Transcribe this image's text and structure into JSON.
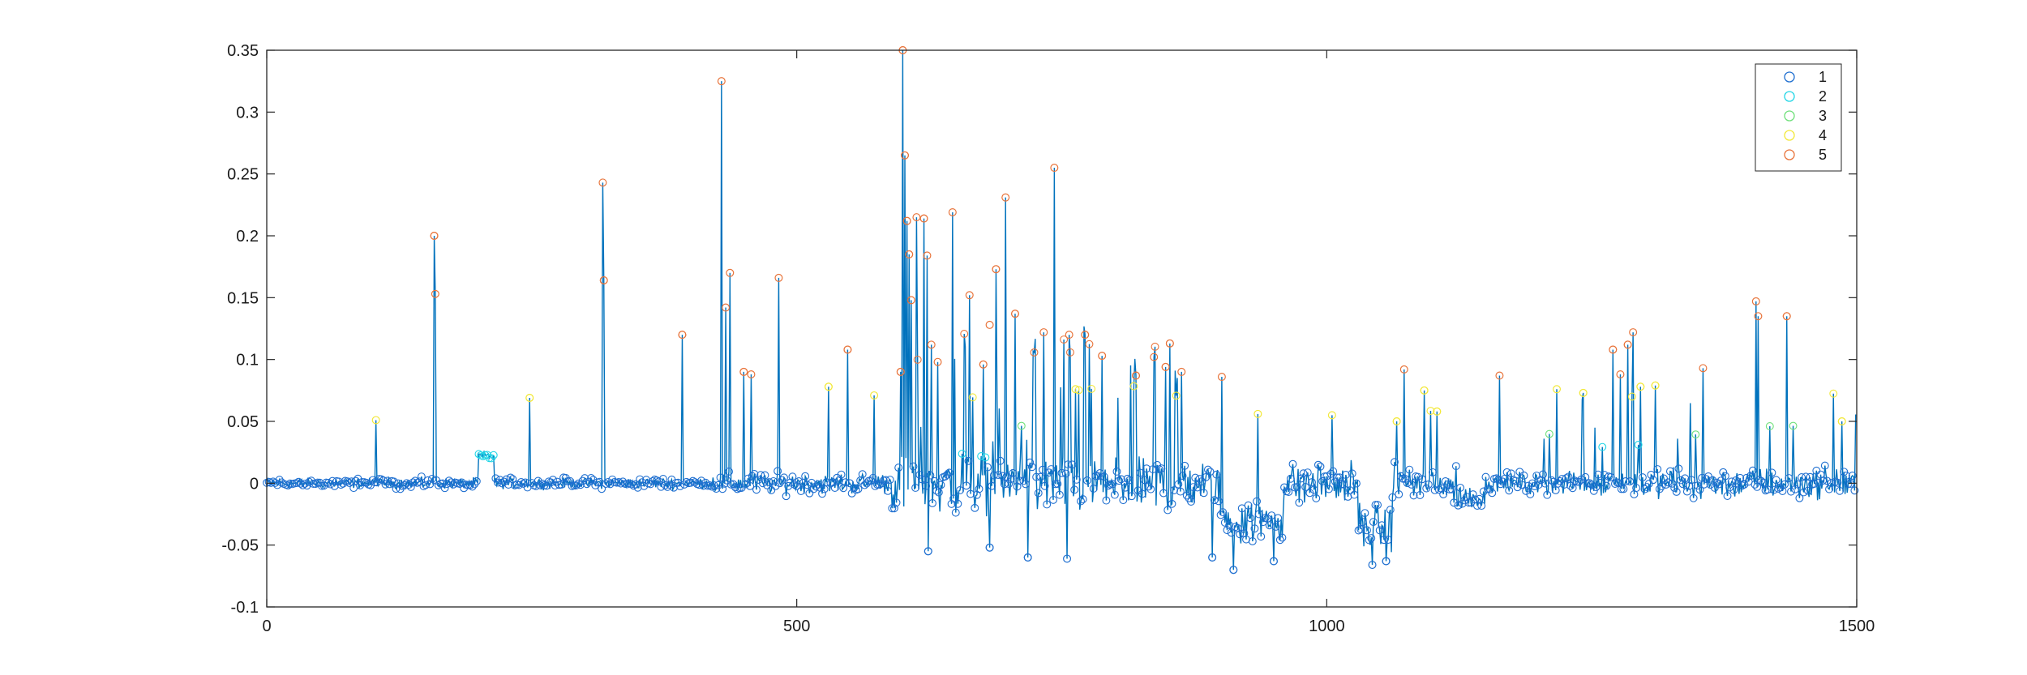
{
  "chart_data": {
    "type": "scatter",
    "title": "",
    "xlabel": "",
    "ylabel": "",
    "xlim": [
      0,
      1500
    ],
    "ylim": [
      -0.1,
      0.35
    ],
    "grid": false,
    "legend_placement": "top-right",
    "x_ticks": [
      0,
      500,
      1000,
      1500
    ],
    "x_tick_labels": [
      "0",
      "500",
      "1000",
      "1500"
    ],
    "y_ticks": [
      -0.1,
      -0.05,
      0,
      0.05,
      0.1,
      0.15,
      0.2,
      0.25,
      0.3,
      0.35
    ],
    "y_tick_labels": [
      "-0.1",
      "-0.05",
      "0",
      "0.05",
      "0.1",
      "0.15",
      "0.2",
      "0.25",
      "0.3",
      "0.35"
    ],
    "line_color": "#0072bd",
    "n_points": 1500,
    "series": [
      {
        "name": "1",
        "color": "#1f6fd0"
      },
      {
        "name": "2",
        "color": "#22d6e6"
      },
      {
        "name": "3",
        "color": "#6fe07a"
      },
      {
        "name": "4",
        "color": "#f2e83a"
      },
      {
        "name": "5",
        "color": "#e8743b"
      }
    ],
    "peaks": [
      {
        "x": 103,
        "y": 0.051
      },
      {
        "x": 158,
        "y": 0.2
      },
      {
        "x": 159,
        "y": 0.153
      },
      {
        "x": 248,
        "y": 0.069
      },
      {
        "x": 317,
        "y": 0.243
      },
      {
        "x": 318,
        "y": 0.164
      },
      {
        "x": 392,
        "y": 0.12
      },
      {
        "x": 429,
        "y": 0.325
      },
      {
        "x": 433,
        "y": 0.142
      },
      {
        "x": 437,
        "y": 0.17
      },
      {
        "x": 450,
        "y": 0.09
      },
      {
        "x": 457,
        "y": 0.088
      },
      {
        "x": 483,
        "y": 0.166
      },
      {
        "x": 530,
        "y": 0.078
      },
      {
        "x": 548,
        "y": 0.108
      },
      {
        "x": 573,
        "y": 0.071
      },
      {
        "x": 598,
        "y": 0.09
      },
      {
        "x": 600,
        "y": 0.35
      },
      {
        "x": 602,
        "y": 0.265
      },
      {
        "x": 604,
        "y": 0.212
      },
      {
        "x": 606,
        "y": 0.185
      },
      {
        "x": 608,
        "y": 0.148
      },
      {
        "x": 613,
        "y": 0.215
      },
      {
        "x": 620,
        "y": 0.214
      },
      {
        "x": 623,
        "y": 0.184
      },
      {
        "x": 627,
        "y": 0.112
      },
      {
        "x": 633,
        "y": 0.098
      },
      {
        "x": 647,
        "y": 0.219
      },
      {
        "x": 663,
        "y": 0.152
      },
      {
        "x": 676,
        "y": 0.096
      },
      {
        "x": 682,
        "y": 0.128
      },
      {
        "x": 688,
        "y": 0.173
      },
      {
        "x": 697,
        "y": 0.231
      },
      {
        "x": 706,
        "y": 0.137
      },
      {
        "x": 733,
        "y": 0.122
      },
      {
        "x": 743,
        "y": 0.255
      },
      {
        "x": 757,
        "y": 0.12
      },
      {
        "x": 763,
        "y": 0.076
      },
      {
        "x": 772,
        "y": 0.12
      },
      {
        "x": 788,
        "y": 0.103
      },
      {
        "x": 820,
        "y": 0.087
      },
      {
        "x": 837,
        "y": 0.102
      },
      {
        "x": 848,
        "y": 0.094
      },
      {
        "x": 852,
        "y": 0.113
      },
      {
        "x": 863,
        "y": 0.09
      },
      {
        "x": 901,
        "y": 0.086
      },
      {
        "x": 935,
        "y": 0.056
      },
      {
        "x": 1005,
        "y": 0.055
      },
      {
        "x": 1066,
        "y": 0.05
      },
      {
        "x": 1073,
        "y": 0.092
      },
      {
        "x": 1092,
        "y": 0.075
      },
      {
        "x": 1104,
        "y": 0.058
      },
      {
        "x": 1163,
        "y": 0.087
      },
      {
        "x": 1217,
        "y": 0.076
      },
      {
        "x": 1242,
        "y": 0.073
      },
      {
        "x": 1270,
        "y": 0.108
      },
      {
        "x": 1277,
        "y": 0.088
      },
      {
        "x": 1284,
        "y": 0.112
      },
      {
        "x": 1289,
        "y": 0.122
      },
      {
        "x": 1296,
        "y": 0.078
      },
      {
        "x": 1310,
        "y": 0.079
      },
      {
        "x": 1355,
        "y": 0.093
      },
      {
        "x": 1405,
        "y": 0.147
      },
      {
        "x": 1407,
        "y": 0.135
      },
      {
        "x": 1434,
        "y": 0.135
      },
      {
        "x": 1486,
        "y": 0.05
      }
    ],
    "dips": [
      {
        "x": 624,
        "y": -0.055
      },
      {
        "x": 682,
        "y": -0.052
      },
      {
        "x": 718,
        "y": -0.06
      },
      {
        "x": 755,
        "y": -0.061
      },
      {
        "x": 892,
        "y": -0.06
      },
      {
        "x": 912,
        "y": -0.07
      },
      {
        "x": 950,
        "y": -0.063
      },
      {
        "x": 1043,
        "y": -0.066
      },
      {
        "x": 1056,
        "y": -0.063
      }
    ]
  }
}
